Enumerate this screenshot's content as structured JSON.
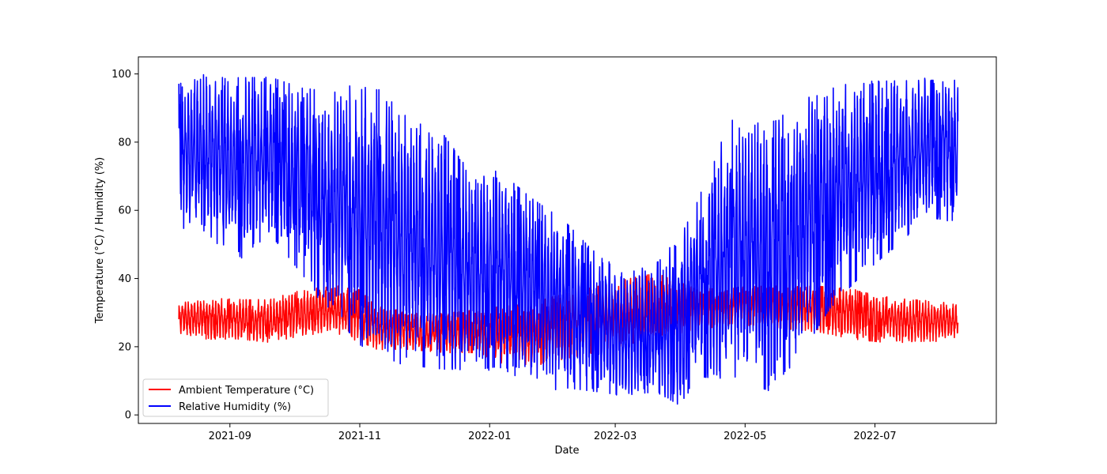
{
  "chart_data": {
    "type": "line",
    "title": "",
    "xlabel": "Date",
    "ylabel": "Temperature (°C) / Humidity (%)",
    "xlim": [
      "2021-07-20",
      "2022-08-27"
    ],
    "ylim": [
      -2.5,
      105
    ],
    "x_ticks": [
      "2021-09-01",
      "2021-11-01",
      "2022-01-01",
      "2022-03-01",
      "2022-05-01",
      "2022-07-01"
    ],
    "x_tick_labels": [
      "2021-09",
      "2021-11",
      "2022-01",
      "2022-03",
      "2022-05",
      "2022-07"
    ],
    "y_ticks": [
      0,
      20,
      40,
      60,
      80,
      100
    ],
    "y_tick_labels": [
      "0",
      "20",
      "40",
      "60",
      "80",
      "100"
    ],
    "grid": false,
    "legend_position": "lower-left",
    "series": [
      {
        "name": "Ambient Temperature (°C)",
        "color": "#ff0000",
        "x": [
          "2021-08-08",
          "2021-08-20",
          "2021-09-05",
          "2021-09-20",
          "2021-10-05",
          "2021-10-20",
          "2021-11-01",
          "2021-11-10",
          "2021-11-25",
          "2021-12-10",
          "2021-12-25",
          "2022-01-05",
          "2022-01-20",
          "2022-02-05",
          "2022-02-20",
          "2022-03-05",
          "2022-03-20",
          "2022-04-05",
          "2022-04-20",
          "2022-05-05",
          "2022-05-20",
          "2022-06-05",
          "2022-06-20",
          "2022-07-05",
          "2022-07-20",
          "2022-08-09"
        ],
        "low": [
          24,
          22,
          22,
          21,
          23,
          24,
          21,
          19,
          19,
          18,
          18,
          15,
          14,
          16,
          18,
          20,
          22,
          24,
          26,
          26,
          25,
          24,
          22,
          21,
          21,
          22
        ],
        "high": [
          33,
          35,
          34,
          34,
          37,
          38,
          37,
          32,
          30,
          30,
          31,
          32,
          33,
          36,
          38,
          40,
          42,
          38,
          37,
          38,
          38,
          38,
          37,
          35,
          34,
          33
        ]
      },
      {
        "name": "Relative Humidity (%)",
        "color": "#0000ff",
        "x": [
          "2021-08-08",
          "2021-08-20",
          "2021-09-05",
          "2021-09-20",
          "2021-10-05",
          "2021-10-20",
          "2021-11-01",
          "2021-11-10",
          "2021-11-25",
          "2021-12-10",
          "2021-12-25",
          "2022-01-05",
          "2022-01-20",
          "2022-02-05",
          "2022-02-20",
          "2022-03-05",
          "2022-03-20",
          "2022-03-31",
          "2022-04-10",
          "2022-04-25",
          "2022-05-10",
          "2022-05-25",
          "2022-06-10",
          "2022-06-25",
          "2022-07-10",
          "2022-07-25",
          "2022-08-09"
        ],
        "low": [
          54,
          53,
          45,
          52,
          40,
          28,
          19,
          16,
          13,
          12,
          12,
          13,
          8,
          7,
          6,
          5,
          6,
          2,
          10,
          9,
          6,
          14,
          30,
          40,
          48,
          57,
          56
        ],
        "high": [
          98,
          100,
          100,
          100,
          97,
          96,
          97,
          97,
          88,
          84,
          70,
          73,
          65,
          58,
          48,
          42,
          45,
          52,
          66,
          88,
          86,
          92,
          97,
          99,
          99,
          99,
          99
        ]
      }
    ]
  }
}
